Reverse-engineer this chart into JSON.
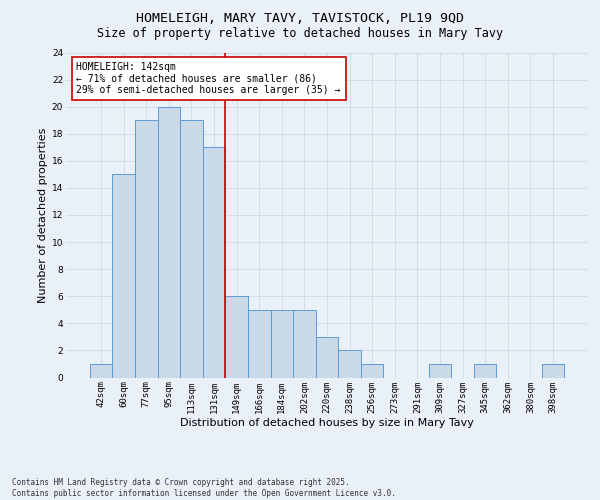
{
  "title": "HOMELEIGH, MARY TAVY, TAVISTOCK, PL19 9QD",
  "subtitle": "Size of property relative to detached houses in Mary Tavy",
  "xlabel": "Distribution of detached houses by size in Mary Tavy",
  "ylabel": "Number of detached properties",
  "categories": [
    "42sqm",
    "60sqm",
    "77sqm",
    "95sqm",
    "113sqm",
    "131sqm",
    "149sqm",
    "166sqm",
    "184sqm",
    "202sqm",
    "220sqm",
    "238sqm",
    "256sqm",
    "273sqm",
    "291sqm",
    "309sqm",
    "327sqm",
    "345sqm",
    "362sqm",
    "380sqm",
    "398sqm"
  ],
  "values": [
    1,
    15,
    19,
    20,
    19,
    17,
    6,
    5,
    5,
    5,
    3,
    2,
    1,
    0,
    0,
    1,
    0,
    1,
    0,
    0,
    1
  ],
  "bar_color": "#c9d9e8",
  "bar_edge_color": "#5b9bd5",
  "vline_x": 5.5,
  "vline_color": "#cc0000",
  "annotation_text": "HOMELEIGH: 142sqm\n← 71% of detached houses are smaller (86)\n29% of semi-detached houses are larger (35) →",
  "annotation_box_color": "#ffffff",
  "annotation_box_edge": "#cc0000",
  "ylim": [
    0,
    24
  ],
  "yticks": [
    0,
    2,
    4,
    6,
    8,
    10,
    12,
    14,
    16,
    18,
    20,
    22,
    24
  ],
  "grid_color": "#d0d8e8",
  "background_color": "#eaf0f8",
  "footer": "Contains HM Land Registry data © Crown copyright and database right 2025.\nContains public sector information licensed under the Open Government Licence v3.0.",
  "title_fontsize": 9.5,
  "subtitle_fontsize": 8.5,
  "xlabel_fontsize": 8,
  "ylabel_fontsize": 8,
  "tick_fontsize": 6.5,
  "annotation_fontsize": 7,
  "footer_fontsize": 5.5
}
